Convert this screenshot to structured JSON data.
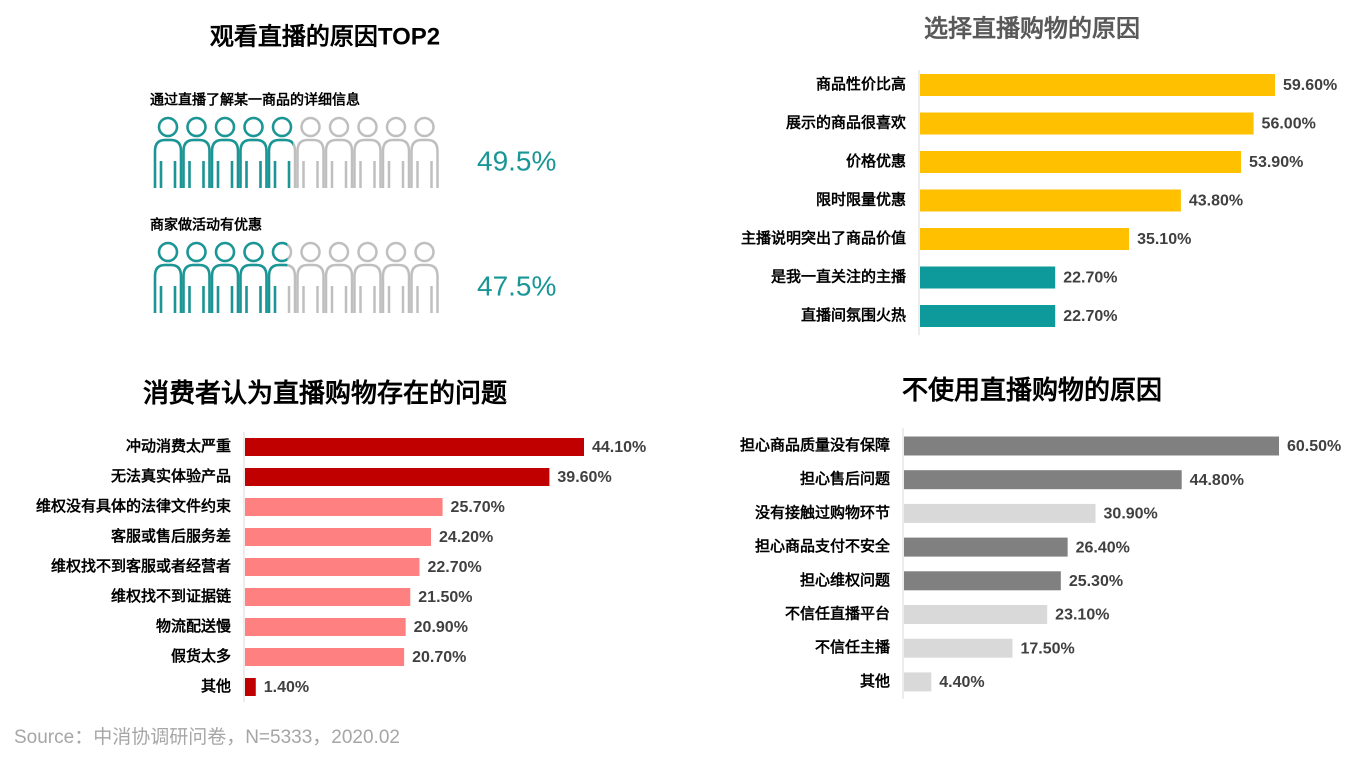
{
  "chart_data": [
    {
      "type": "pictogram",
      "title": "观看直播的原因TOP2",
      "categories": [
        "通过直播了解某一商品的详细信息",
        "商家做活动有优惠"
      ],
      "values": [
        49.5,
        47.5
      ],
      "value_labels": [
        "49.5%",
        "47.5%"
      ],
      "color": "#1a9696",
      "empty_color": "#bfbfbf"
    },
    {
      "type": "bar",
      "title": "选择直播购物的原因",
      "categories": [
        "商品性价比高",
        "展示的商品很喜欢",
        "价格优惠",
        "限时限量优惠",
        "主播说明突出了商品价值",
        "是我一直关注的主播",
        "直播间氛围火热"
      ],
      "values": [
        59.6,
        56.0,
        53.9,
        43.8,
        35.1,
        22.7,
        22.7
      ],
      "value_labels": [
        "59.60%",
        "56.00%",
        "53.90%",
        "43.80%",
        "35.10%",
        "22.70%",
        "22.70%"
      ],
      "colors": [
        "#ffc000",
        "#ffc000",
        "#ffc000",
        "#ffc000",
        "#ffc000",
        "#0e9a9a",
        "#0e9a9a"
      ]
    },
    {
      "type": "bar",
      "title": "消费者认为直播购物存在的问题",
      "categories": [
        "冲动消费太严重",
        "无法真实体验产品",
        "维权没有具体的法律文件约束",
        "客服或售后服务差",
        "维权找不到客服或者经营者",
        "维权找不到证据链",
        "物流配送慢",
        "假货太多",
        "其他"
      ],
      "values": [
        44.1,
        39.6,
        25.7,
        24.2,
        22.7,
        21.5,
        20.9,
        20.7,
        1.4
      ],
      "value_labels": [
        "44.10%",
        "39.60%",
        "25.70%",
        "24.20%",
        "22.70%",
        "21.50%",
        "20.90%",
        "20.70%",
        "1.40%"
      ],
      "colors": [
        "#c00000",
        "#c00000",
        "#ff8080",
        "#ff8080",
        "#ff8080",
        "#ff8080",
        "#ff8080",
        "#ff8080",
        "#c00000"
      ]
    },
    {
      "type": "bar",
      "title": "不使用直播购物的原因",
      "categories": [
        "担心商品质量没有保障",
        "担心售后问题",
        "没有接触过购物环节",
        "担心商品支付不安全",
        "担心维权问题",
        "不信任直播平台",
        "不信任主播",
        "其他"
      ],
      "values": [
        60.5,
        44.8,
        30.9,
        26.4,
        25.3,
        23.1,
        17.5,
        4.4
      ],
      "value_labels": [
        "60.50%",
        "44.80%",
        "30.90%",
        "26.40%",
        "25.30%",
        "23.10%",
        "17.50%",
        "4.40%"
      ],
      "colors": [
        "#808080",
        "#808080",
        "#d9d9d9",
        "#808080",
        "#808080",
        "#d9d9d9",
        "#d9d9d9",
        "#d9d9d9"
      ]
    }
  ],
  "source": "Source：中消协调研问卷，N=5333，2020.02"
}
